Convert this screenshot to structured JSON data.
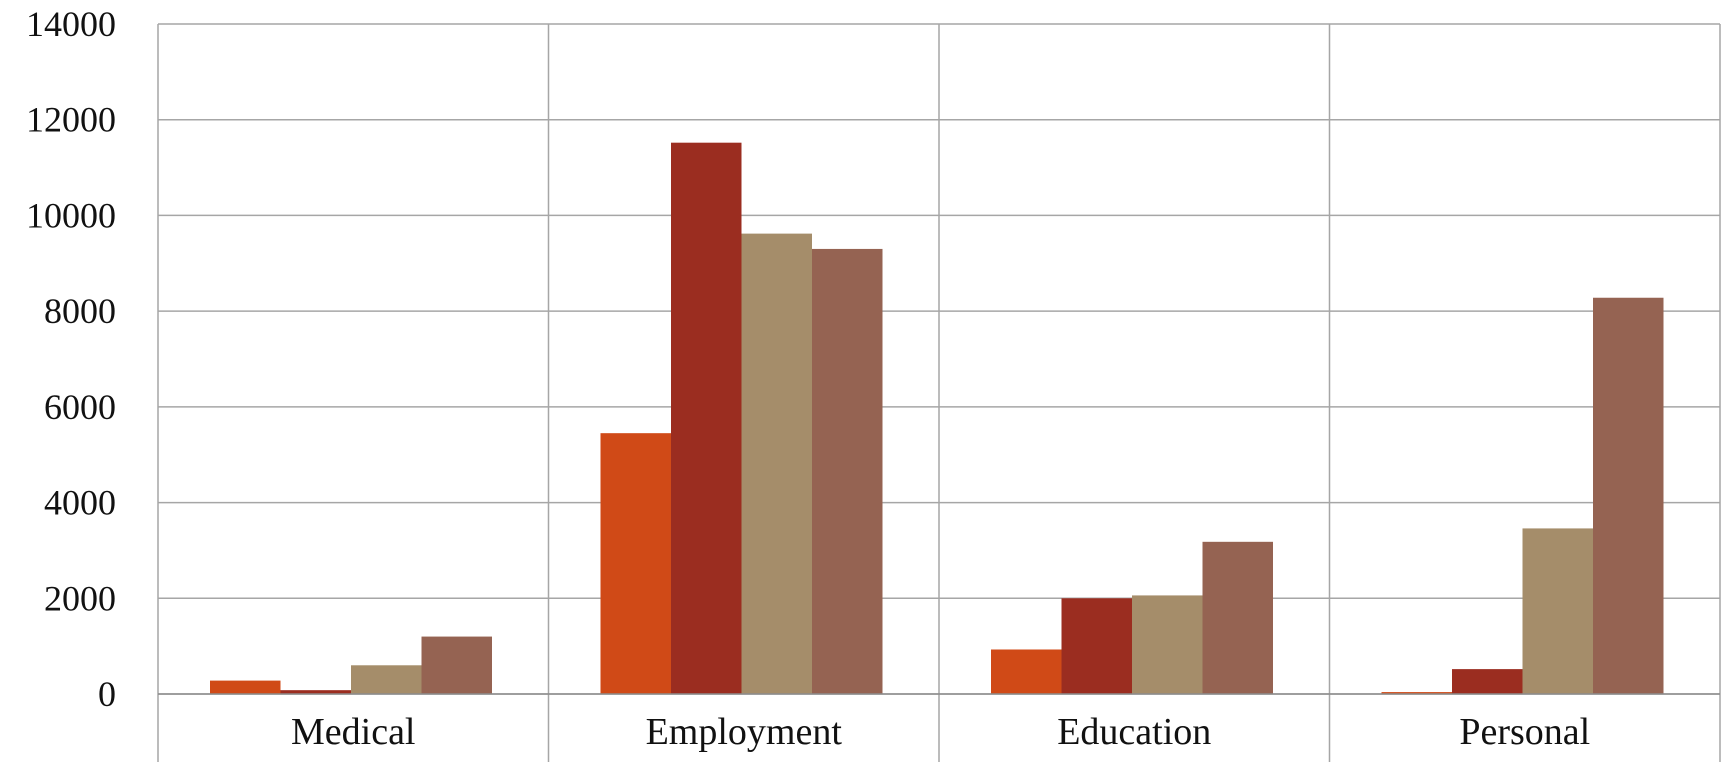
{
  "chart_data": {
    "type": "bar",
    "title": "",
    "xlabel": "",
    "ylabel": "",
    "categories": [
      "Medical",
      "Employment",
      "Education",
      "Personal"
    ],
    "ylim": [
      0,
      14000
    ],
    "yticks": [
      0,
      2000,
      4000,
      6000,
      8000,
      10000,
      12000,
      14000
    ],
    "yticklabels": [
      "0",
      "2000",
      "4000",
      "6000",
      "8000",
      "10000",
      "12000",
      "14000"
    ],
    "grid": true,
    "legend": "none",
    "series": [
      {
        "values": [
          280,
          5450,
          930,
          40
        ],
        "color": "#d04a17"
      },
      {
        "values": [
          80,
          11520,
          2000,
          520
        ],
        "color": "#9b2d20"
      },
      {
        "values": [
          600,
          9620,
          2060,
          3460
        ],
        "color": "#a58d6a"
      },
      {
        "values": [
          1200,
          9300,
          3180,
          8280
        ],
        "color": "#956352"
      }
    ],
    "colors": {
      "grid": "#a6a6a6",
      "axis": "#8c8c8c",
      "text": "#111111",
      "background": "#ffffff"
    }
  }
}
